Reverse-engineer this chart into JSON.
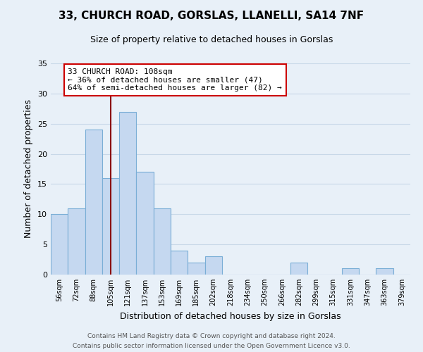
{
  "title1": "33, CHURCH ROAD, GORSLAS, LLANELLI, SA14 7NF",
  "title2": "Size of property relative to detached houses in Gorslas",
  "xlabel": "Distribution of detached houses by size in Gorslas",
  "ylabel": "Number of detached properties",
  "footer1": "Contains HM Land Registry data © Crown copyright and database right 2024.",
  "footer2": "Contains public sector information licensed under the Open Government Licence v3.0.",
  "bin_labels": [
    "56sqm",
    "72sqm",
    "88sqm",
    "105sqm",
    "121sqm",
    "137sqm",
    "153sqm",
    "169sqm",
    "185sqm",
    "202sqm",
    "218sqm",
    "234sqm",
    "250sqm",
    "266sqm",
    "282sqm",
    "299sqm",
    "315sqm",
    "331sqm",
    "347sqm",
    "363sqm",
    "379sqm"
  ],
  "bar_heights": [
    10,
    11,
    24,
    16,
    27,
    17,
    11,
    4,
    2,
    3,
    0,
    0,
    0,
    0,
    2,
    0,
    0,
    1,
    0,
    1,
    0
  ],
  "bar_color": "#c5d8f0",
  "bar_edge_color": "#7aaed6",
  "grid_color": "#c8d8e8",
  "property_line_x_label": "105sqm",
  "property_line_color": "#8b0000",
  "annotation_text": "33 CHURCH ROAD: 108sqm\n← 36% of detached houses are smaller (47)\n64% of semi-detached houses are larger (82) →",
  "annotation_box_color": "#ffffff",
  "annotation_box_edge": "#cc0000",
  "ylim": [
    0,
    35
  ],
  "yticks": [
    0,
    5,
    10,
    15,
    20,
    25,
    30,
    35
  ],
  "background_color": "#e8f0f8",
  "title_fontsize": 11,
  "subtitle_fontsize": 9
}
